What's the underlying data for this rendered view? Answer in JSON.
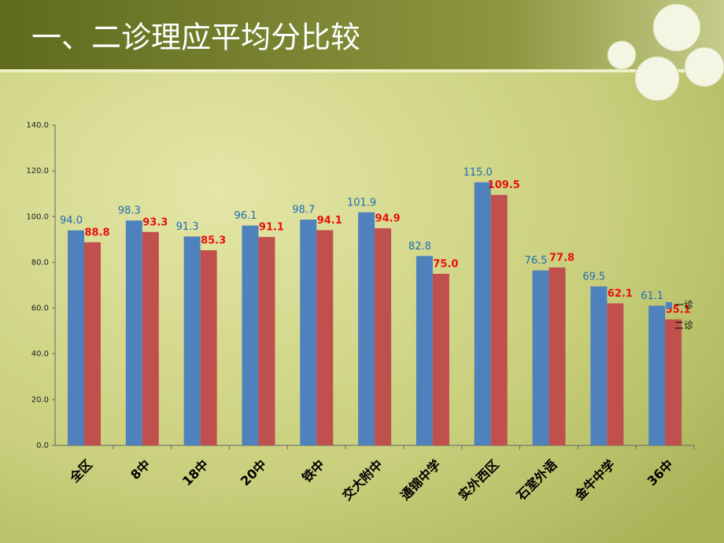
{
  "chart_data": {
    "type": "bar",
    "title": "一、二诊理应平均分比较",
    "categories": [
      "全区",
      "8中",
      "18中",
      "20中",
      "铁中",
      "交大附中",
      "通锦中学",
      "实外西区",
      "石室外语",
      "金牛中学",
      "36中"
    ],
    "series": [
      {
        "name": "一诊",
        "color": "#4f81bd",
        "label_color": "#1f6eb4",
        "values": [
          94.0,
          98.3,
          91.3,
          96.1,
          98.7,
          101.9,
          82.8,
          115.0,
          76.5,
          69.5,
          61.1
        ],
        "value_labels": [
          "94.0",
          "98.3",
          "91.3",
          "96.1",
          "98.7",
          "101.9",
          "82.8",
          "115.0",
          "76.5",
          "69.5",
          "61.1"
        ]
      },
      {
        "name": "二诊",
        "color": "#c0504d",
        "label_color": "#e8100c",
        "values": [
          88.8,
          93.3,
          85.3,
          91.1,
          94.1,
          94.9,
          75.0,
          109.5,
          77.8,
          62.1,
          55.1
        ],
        "value_labels": [
          "88.8",
          "93.3",
          "85.3",
          "91.1",
          "94.1",
          "94.9",
          "75.0",
          "109.5",
          "77.8",
          "62.1",
          "55.1"
        ]
      }
    ],
    "ylim": [
      0,
      140
    ],
    "yticks": [
      {
        "value": 0,
        "label": "0.0"
      },
      {
        "value": 20,
        "label": "20.0"
      },
      {
        "value": 40,
        "label": "40.0"
      },
      {
        "value": 60,
        "label": "60.0"
      },
      {
        "value": 80,
        "label": "80.0"
      },
      {
        "value": 100,
        "label": "100.0"
      },
      {
        "value": 120,
        "label": "120.0"
      },
      {
        "value": 140,
        "label": "140.0"
      }
    ],
    "grid": false
  }
}
